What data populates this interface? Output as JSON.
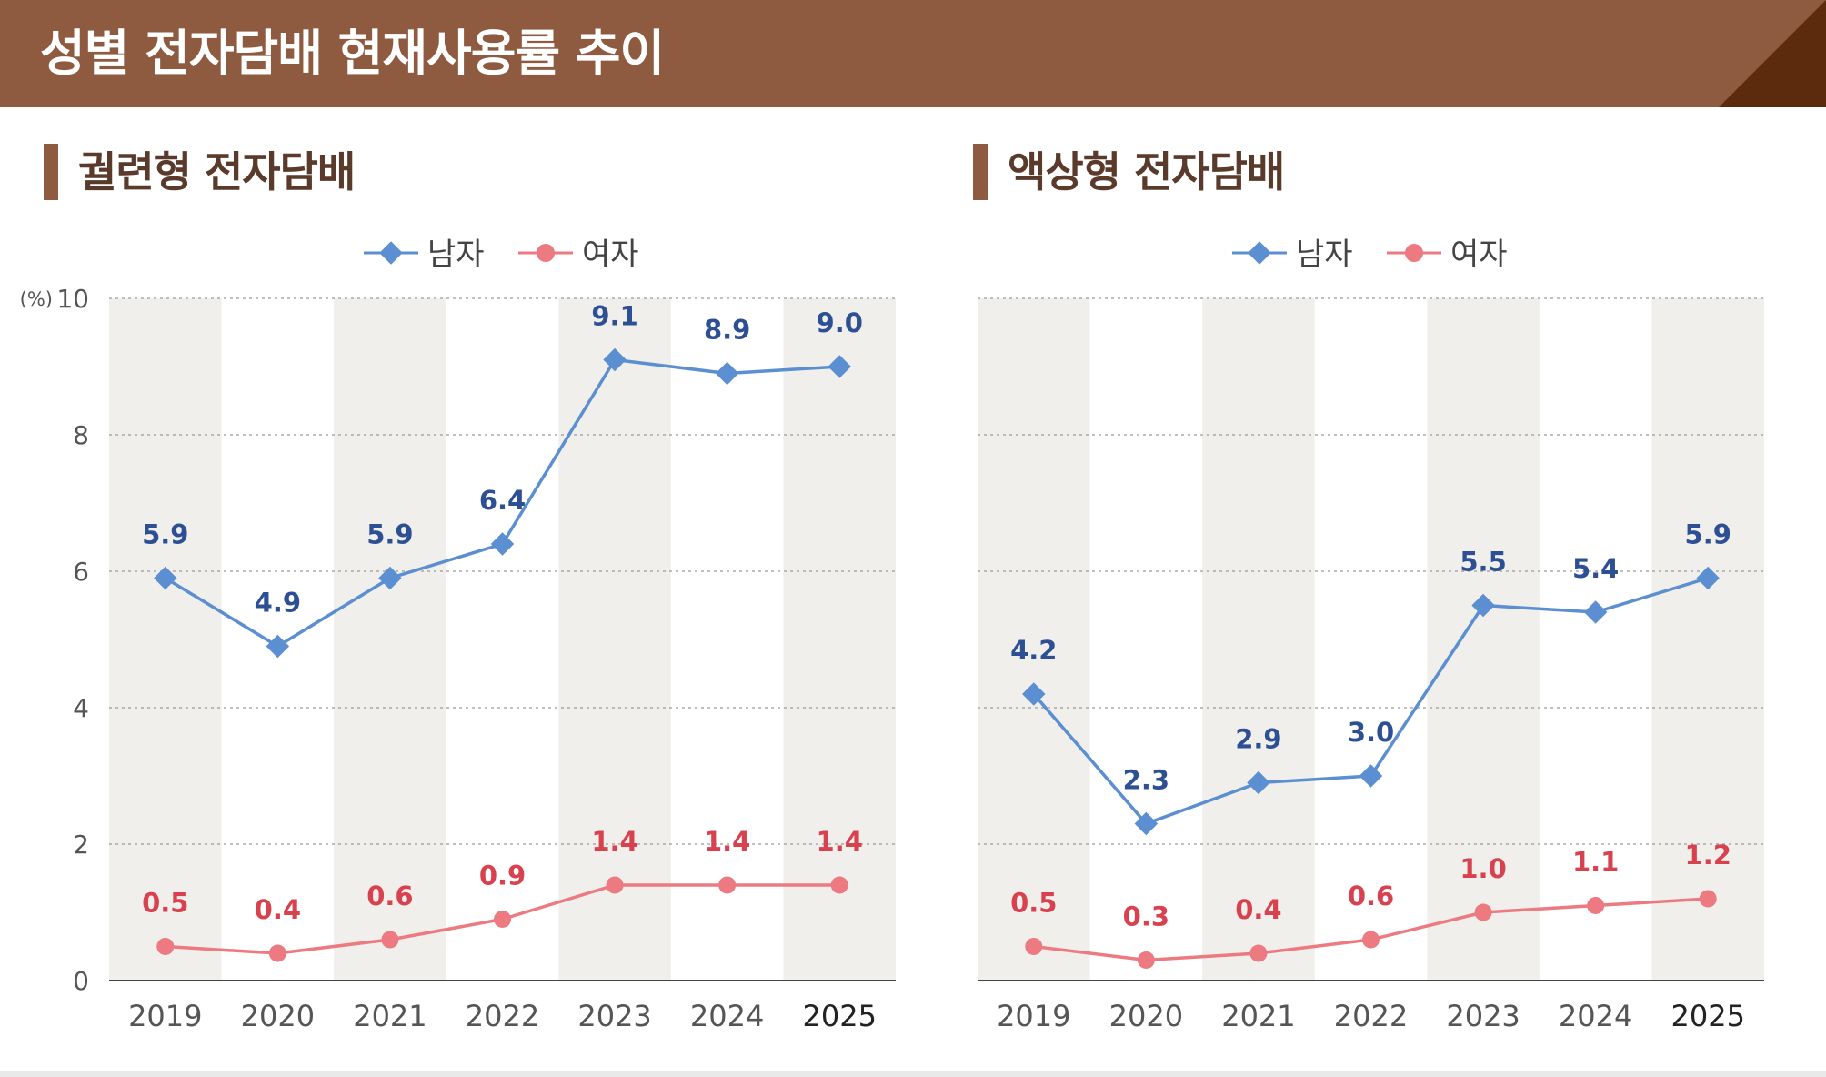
{
  "title": "성별 전자담배 현재사용률 추이",
  "colors": {
    "header_bg": "#8e5b40",
    "header_corner": "#5c2a0d",
    "male": "#5b8fd1",
    "male_label": "#2d4f94",
    "female": "#ec7a80",
    "female_label": "#d8424f",
    "band": "#f1efeb"
  },
  "legend": {
    "male": "남자",
    "female": "여자"
  },
  "y_axis": {
    "unit": "(%)",
    "ticks": [
      "0",
      "2",
      "4",
      "6",
      "8",
      "10"
    ]
  },
  "chart_data": [
    {
      "type": "line",
      "title": "궐련형 전자담배",
      "categories": [
        "2019",
        "2020",
        "2021",
        "2022",
        "2023",
        "2024",
        "2025"
      ],
      "series": [
        {
          "name": "남자",
          "values": [
            5.9,
            4.9,
            5.9,
            6.4,
            9.1,
            8.9,
            9.0
          ],
          "labels": [
            "5.9",
            "4.9",
            "5.9",
            "6.4",
            "9.1",
            "8.9",
            "9.0"
          ],
          "marker": "diamond"
        },
        {
          "name": "여자",
          "values": [
            0.5,
            0.4,
            0.6,
            0.9,
            1.4,
            1.4,
            1.4
          ],
          "labels": [
            "0.5",
            "0.4",
            "0.6",
            "0.9",
            "1.4",
            "1.4",
            "1.4"
          ],
          "marker": "circle"
        }
      ],
      "ylim": [
        0,
        10
      ],
      "ylabel": "(%)",
      "grid": true,
      "legend_position": "top"
    },
    {
      "type": "line",
      "title": "액상형 전자담배",
      "categories": [
        "2019",
        "2020",
        "2021",
        "2022",
        "2023",
        "2024",
        "2025"
      ],
      "series": [
        {
          "name": "남자",
          "values": [
            4.2,
            2.3,
            2.9,
            3.0,
            5.5,
            5.4,
            5.9
          ],
          "labels": [
            "4.2",
            "2.3",
            "2.9",
            "3.0",
            "5.5",
            "5.4",
            "5.9"
          ],
          "marker": "diamond"
        },
        {
          "name": "여자",
          "values": [
            0.5,
            0.3,
            0.4,
            0.6,
            1.0,
            1.1,
            1.2
          ],
          "labels": [
            "0.5",
            "0.3",
            "0.4",
            "0.6",
            "1.0",
            "1.1",
            "1.2"
          ],
          "marker": "circle"
        }
      ],
      "ylim": [
        0,
        10
      ],
      "grid": true,
      "legend_position": "top"
    }
  ]
}
